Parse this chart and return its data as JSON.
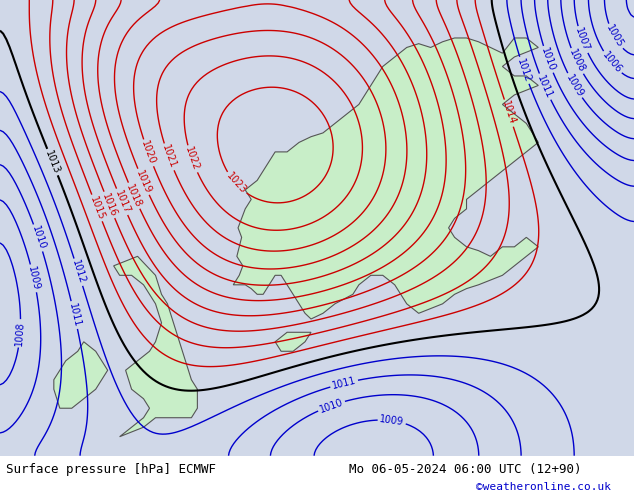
{
  "title_left": "Surface pressure [hPa] ECMWF",
  "title_right": "Mo 06-05-2024 06:00 UTC (12+90)",
  "credit": "©weatheronline.co.uk",
  "bg_color": "#d0d8e8",
  "land_color": "#c8eec8",
  "border_color": "#555555",
  "contour_interval": 1,
  "pressure_min": 1005,
  "pressure_max": 1025,
  "font_size_label": 9,
  "font_size_bottom": 9,
  "font_size_credit": 8,
  "label_color_black": "#000000",
  "label_color_red": "#cc0000",
  "label_color_blue": "#0000cc",
  "line_color_black": "#000000",
  "line_color_red": "#cc0000",
  "line_color_blue": "#0000cc",
  "bottom_bar_color": "#ffffff"
}
